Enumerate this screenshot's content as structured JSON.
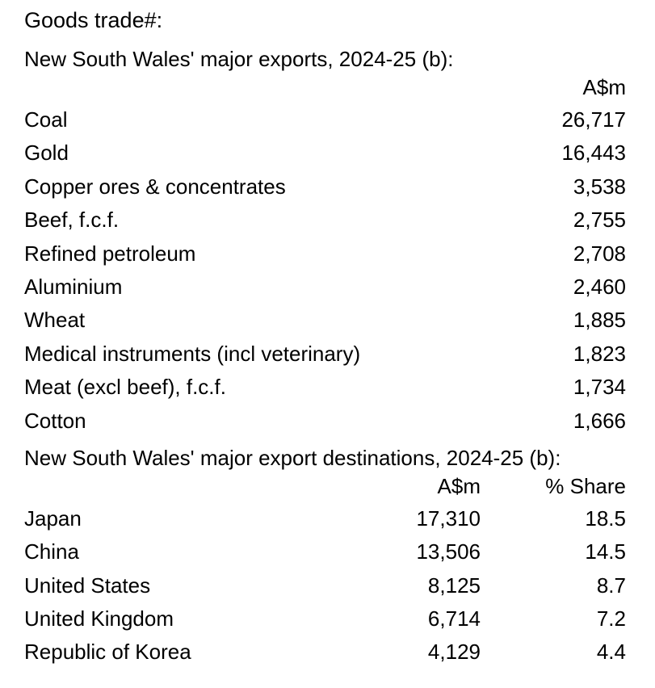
{
  "title": "Goods trade#:",
  "exports": {
    "heading": "New South Wales' major exports, 2024-25 (b):",
    "unit": "A$m",
    "rows": [
      {
        "label": "Coal",
        "value": "26,717"
      },
      {
        "label": "Gold",
        "value": "16,443"
      },
      {
        "label": "Copper ores & concentrates",
        "value": "3,538"
      },
      {
        "label": "Beef, f.c.f.",
        "value": "2,755"
      },
      {
        "label": "Refined petroleum",
        "value": "2,708"
      },
      {
        "label": "Aluminium",
        "value": "2,460"
      },
      {
        "label": "Wheat",
        "value": "1,885"
      },
      {
        "label": "Medical instruments (incl veterinary)",
        "value": "1,823"
      },
      {
        "label": "Meat (excl beef), f.c.f.",
        "value": "1,734"
      },
      {
        "label": "Cotton",
        "value": "1,666"
      }
    ]
  },
  "destinations": {
    "heading": "New South Wales' major export destinations, 2024-25 (b):",
    "unit_value": "A$m",
    "unit_share": "% Share",
    "rows": [
      {
        "label": "Japan",
        "value": "17,310",
        "share": "18.5"
      },
      {
        "label": "China",
        "value": "13,506",
        "share": "14.5"
      },
      {
        "label": "United States",
        "value": "8,125",
        "share": "8.7"
      },
      {
        "label": "United Kingdom",
        "value": "6,714",
        "share": "7.2"
      },
      {
        "label": "Republic of Korea",
        "value": "4,129",
        "share": "4.4"
      }
    ]
  }
}
